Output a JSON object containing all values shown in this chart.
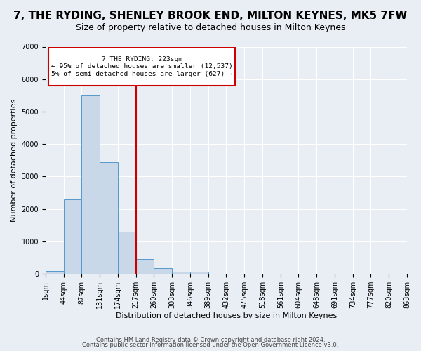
{
  "title": "7, THE RYDING, SHENLEY BROOK END, MILTON KEYNES, MK5 7FW",
  "subtitle": "Size of property relative to detached houses in Milton Keynes",
  "xlabel": "Distribution of detached houses by size in Milton Keynes",
  "ylabel": "Number of detached properties",
  "bin_labels": [
    "1sqm",
    "44sqm",
    "87sqm",
    "131sqm",
    "174sqm",
    "217sqm",
    "260sqm",
    "303sqm",
    "346sqm",
    "389sqm",
    "432sqm",
    "475sqm",
    "518sqm",
    "561sqm",
    "604sqm",
    "648sqm",
    "691sqm",
    "734sqm",
    "777sqm",
    "820sqm",
    "863sqm"
  ],
  "bar_values": [
    100,
    2300,
    5500,
    3450,
    1300,
    450,
    175,
    75,
    75,
    0,
    0,
    0,
    0,
    0,
    0,
    0,
    0,
    0,
    0,
    0
  ],
  "bar_color": "#c8d8e8",
  "bar_edge_color": "#5599cc",
  "vline_x": 5,
  "vline_color": "#cc0000",
  "ylim": [
    0,
    7000
  ],
  "annotation_text": "7 THE RYDING: 223sqm\n← 95% of detached houses are smaller (12,537)\n5% of semi-detached houses are larger (627) →",
  "annotation_box_color": "#cc0000",
  "footer_lines": [
    "Contains HM Land Registry data © Crown copyright and database right 2024.",
    "Contains public sector information licensed under the Open Government Licence v3.0."
  ],
  "background_color": "#e8eef4",
  "grid_color": "#ffffff",
  "title_fontsize": 11,
  "subtitle_fontsize": 9,
  "axis_label_fontsize": 8,
  "tick_fontsize": 7,
  "footer_fontsize": 6
}
